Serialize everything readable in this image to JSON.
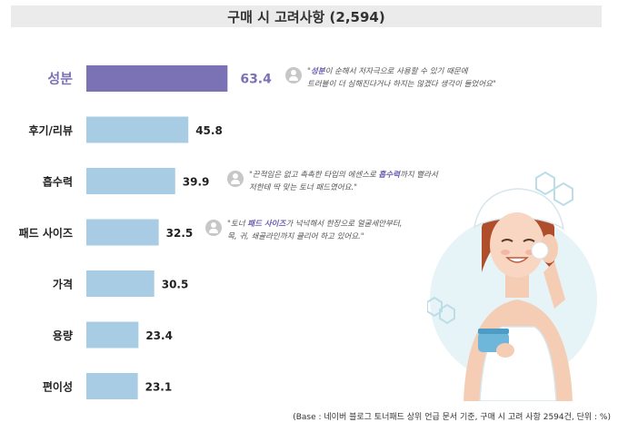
{
  "chart_data": {
    "type": "bar",
    "orientation": "horizontal",
    "title": "구매 시 고려사항 (2,594)",
    "categories": [
      "성분",
      "후기/리뷰",
      "흡수력",
      "패드 사이즈",
      "가격",
      "용량",
      "편이성"
    ],
    "values": [
      63.4,
      45.8,
      39.9,
      32.5,
      30.5,
      23.4,
      23.1
    ],
    "highlight_index": 0,
    "colors": {
      "highlight": "#7b72b5",
      "default": "#a8cce3"
    }
  },
  "quotes": [
    {
      "pre": "\"",
      "keyword": "성분",
      "post": "이 순해서 저자극으로 사용할 수 있기 때문에",
      "line2": "트러블이 더 심해진다거나 하지는 않겠다 생각이 들었어요\""
    },
    {
      "pre": "\"끈적임은 없고 촉촉한 타입의 에센스로 ",
      "keyword": "흡수력",
      "post": "까지 빨라서",
      "line2": "저한테 딱 맞는 토너 패드였어요.\""
    },
    {
      "pre": "\"토너 ",
      "keyword": "패드 사이즈",
      "post": "가 넉넉해서 한장으로 얼굴세안부터,",
      "line2": "목, 귀, 쇄골라인까지 클리어 하고 있어요.\""
    }
  ],
  "footnote": "(Base : 네이버 블로그 토너패드 상위 언급 문서 기준, 구매 시 고려 사항 2594건, 단위 : %)"
}
